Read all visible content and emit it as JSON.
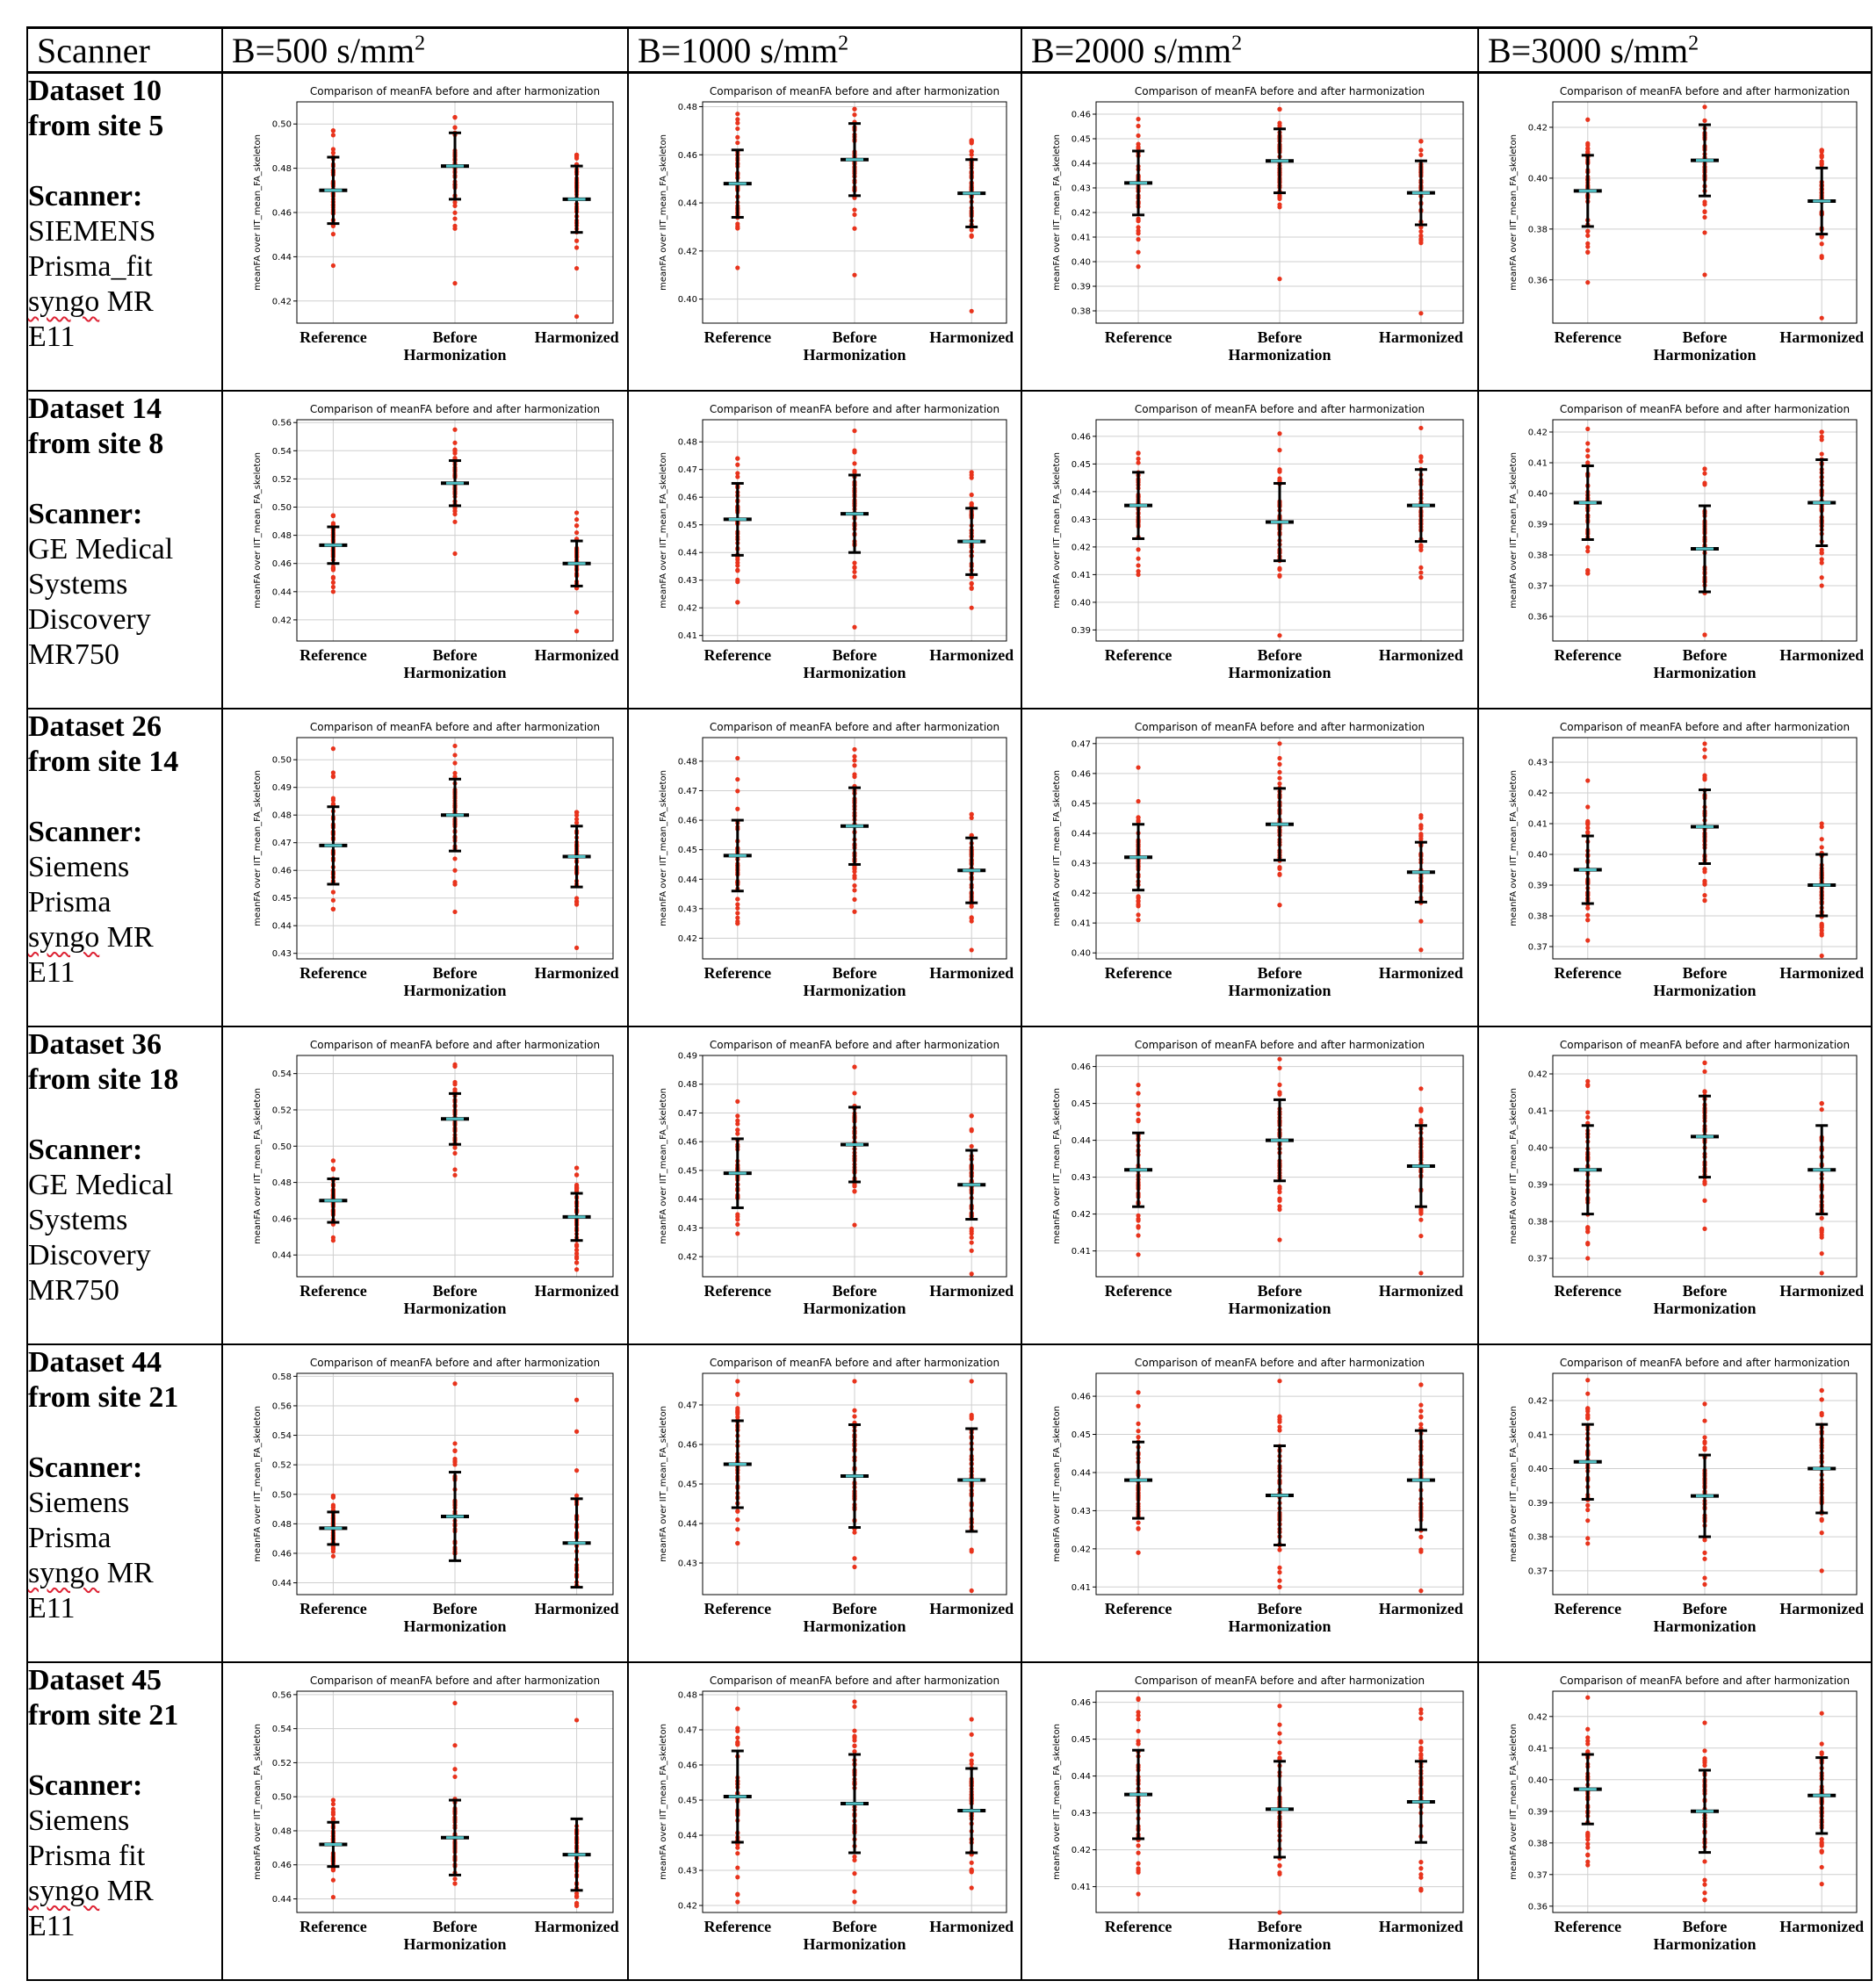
{
  "header": {
    "scanner": "Scanner",
    "b_prefix": "B=",
    "b_unit": " s/mm",
    "b_sup": "2",
    "columns": [
      "500",
      "1000",
      "2000",
      "3000"
    ]
  },
  "plot_text": {
    "title": "Comparison of meanFA before and after harmonization",
    "ylabel": "meanFA over IIT_mean_FA_skeleton",
    "categories": [
      "Reference",
      "Before",
      "Harmonized"
    ],
    "sublabel": "Harmonization"
  },
  "rows": [
    {
      "dataset": "Dataset 10",
      "site": "from site 5",
      "scanner_label": "Scanner:",
      "lines": [
        "SIEMENS",
        "Prisma_fit",
        "syngo MR",
        "E11"
      ],
      "spell": [
        2
      ]
    },
    {
      "dataset": "Dataset 14",
      "site": "from site 8",
      "scanner_label": "Scanner:",
      "lines": [
        "GE Medical",
        "Systems",
        "Discovery",
        "MR750"
      ],
      "spell": []
    },
    {
      "dataset": "Dataset 26",
      "site": "from site 14",
      "scanner_label": "Scanner:",
      "lines": [
        "Siemens",
        "Prisma",
        "syngo MR",
        "E11"
      ],
      "spell": [
        2
      ]
    },
    {
      "dataset": "Dataset 36",
      "site": "from site 18",
      "scanner_label": "Scanner:",
      "lines": [
        "GE Medical",
        "Systems",
        "Discovery",
        "MR750"
      ],
      "spell": []
    },
    {
      "dataset": "Dataset 44",
      "site": "from site 21",
      "scanner_label": "Scanner:",
      "lines": [
        "Siemens",
        "Prisma",
        "syngo MR",
        "E11"
      ],
      "spell": [
        2
      ]
    },
    {
      "dataset": "Dataset 45",
      "site": "from site 21",
      "scanner_label": "Scanner:",
      "lines": [
        "Siemens",
        "Prisma fit",
        "syngo MR",
        "E11"
      ],
      "spell": [
        2
      ]
    }
  ],
  "chart_data": [
    {
      "type": "scatter",
      "row": 0,
      "col": 0,
      "ylim": [
        0.41,
        0.51
      ],
      "yticks": [
        0.42,
        0.44,
        0.46,
        0.48,
        0.5
      ],
      "means": [
        0.47,
        0.481,
        0.466
      ],
      "sds": [
        0.015,
        0.015,
        0.015
      ],
      "mins": [
        0.436,
        0.428,
        0.413
      ],
      "maxs": [
        0.497,
        0.503,
        0.486
      ],
      "seed": 11
    },
    {
      "type": "scatter",
      "row": 0,
      "col": 1,
      "ylim": [
        0.39,
        0.482
      ],
      "yticks": [
        0.4,
        0.42,
        0.44,
        0.46,
        0.48
      ],
      "means": [
        0.448,
        0.458,
        0.444
      ],
      "sds": [
        0.014,
        0.015,
        0.014
      ],
      "mins": [
        0.413,
        0.41,
        0.395
      ],
      "maxs": [
        0.477,
        0.479,
        0.466
      ],
      "seed": 12
    },
    {
      "type": "scatter",
      "row": 0,
      "col": 2,
      "ylim": [
        0.375,
        0.465
      ],
      "yticks": [
        0.38,
        0.39,
        0.4,
        0.41,
        0.42,
        0.43,
        0.44,
        0.45,
        0.46
      ],
      "means": [
        0.432,
        0.441,
        0.428
      ],
      "sds": [
        0.013,
        0.013,
        0.013
      ],
      "mins": [
        0.398,
        0.393,
        0.379
      ],
      "maxs": [
        0.458,
        0.462,
        0.449
      ],
      "seed": 13
    },
    {
      "type": "scatter",
      "row": 0,
      "col": 3,
      "ylim": [
        0.343,
        0.43
      ],
      "yticks": [
        0.36,
        0.38,
        0.4,
        0.42
      ],
      "means": [
        0.395,
        0.407,
        0.391
      ],
      "sds": [
        0.014,
        0.014,
        0.013
      ],
      "mins": [
        0.359,
        0.362,
        0.345
      ],
      "maxs": [
        0.423,
        0.428,
        0.411
      ],
      "seed": 14
    },
    {
      "type": "scatter",
      "row": 1,
      "col": 0,
      "ylim": [
        0.405,
        0.562
      ],
      "yticks": [
        0.42,
        0.44,
        0.46,
        0.48,
        0.5,
        0.52,
        0.54,
        0.56
      ],
      "means": [
        0.473,
        0.517,
        0.46
      ],
      "sds": [
        0.013,
        0.016,
        0.016
      ],
      "mins": [
        0.44,
        0.467,
        0.412
      ],
      "maxs": [
        0.494,
        0.555,
        0.496
      ],
      "seed": 21
    },
    {
      "type": "scatter",
      "row": 1,
      "col": 1,
      "ylim": [
        0.408,
        0.488
      ],
      "yticks": [
        0.41,
        0.42,
        0.43,
        0.44,
        0.45,
        0.46,
        0.47,
        0.48
      ],
      "means": [
        0.452,
        0.454,
        0.444
      ],
      "sds": [
        0.013,
        0.014,
        0.012
      ],
      "mins": [
        0.422,
        0.413,
        0.42
      ],
      "maxs": [
        0.474,
        0.484,
        0.469
      ],
      "seed": 22
    },
    {
      "type": "scatter",
      "row": 1,
      "col": 2,
      "ylim": [
        0.386,
        0.466
      ],
      "yticks": [
        0.39,
        0.4,
        0.41,
        0.42,
        0.43,
        0.44,
        0.45,
        0.46
      ],
      "means": [
        0.435,
        0.429,
        0.435
      ],
      "sds": [
        0.012,
        0.014,
        0.013
      ],
      "mins": [
        0.41,
        0.388,
        0.409
      ],
      "maxs": [
        0.454,
        0.461,
        0.463
      ],
      "seed": 23
    },
    {
      "type": "scatter",
      "row": 1,
      "col": 3,
      "ylim": [
        0.352,
        0.424
      ],
      "yticks": [
        0.36,
        0.37,
        0.38,
        0.39,
        0.4,
        0.41,
        0.42
      ],
      "means": [
        0.397,
        0.382,
        0.397
      ],
      "sds": [
        0.012,
        0.014,
        0.014
      ],
      "mins": [
        0.374,
        0.354,
        0.37
      ],
      "maxs": [
        0.421,
        0.408,
        0.42
      ],
      "seed": 24
    },
    {
      "type": "scatter",
      "row": 2,
      "col": 0,
      "ylim": [
        0.428,
        0.508
      ],
      "yticks": [
        0.43,
        0.44,
        0.45,
        0.46,
        0.47,
        0.48,
        0.49,
        0.5
      ],
      "means": [
        0.469,
        0.48,
        0.465
      ],
      "sds": [
        0.014,
        0.013,
        0.011
      ],
      "mins": [
        0.446,
        0.445,
        0.432
      ],
      "maxs": [
        0.504,
        0.505,
        0.481
      ],
      "seed": 31
    },
    {
      "type": "scatter",
      "row": 2,
      "col": 1,
      "ylim": [
        0.413,
        0.488
      ],
      "yticks": [
        0.42,
        0.43,
        0.44,
        0.45,
        0.46,
        0.47,
        0.48
      ],
      "means": [
        0.448,
        0.458,
        0.443
      ],
      "sds": [
        0.012,
        0.013,
        0.011
      ],
      "mins": [
        0.425,
        0.429,
        0.416
      ],
      "maxs": [
        0.481,
        0.484,
        0.462
      ],
      "seed": 32
    },
    {
      "type": "scatter",
      "row": 2,
      "col": 2,
      "ylim": [
        0.398,
        0.472
      ],
      "yticks": [
        0.4,
        0.41,
        0.42,
        0.43,
        0.44,
        0.45,
        0.46,
        0.47
      ],
      "means": [
        0.432,
        0.443,
        0.427
      ],
      "sds": [
        0.011,
        0.012,
        0.01
      ],
      "mins": [
        0.411,
        0.416,
        0.401
      ],
      "maxs": [
        0.462,
        0.47,
        0.446
      ],
      "seed": 33
    },
    {
      "type": "scatter",
      "row": 2,
      "col": 3,
      "ylim": [
        0.366,
        0.438
      ],
      "yticks": [
        0.37,
        0.38,
        0.39,
        0.4,
        0.41,
        0.42,
        0.43
      ],
      "means": [
        0.395,
        0.409,
        0.39
      ],
      "sds": [
        0.011,
        0.012,
        0.01
      ],
      "mins": [
        0.372,
        0.385,
        0.367
      ],
      "maxs": [
        0.424,
        0.436,
        0.41
      ],
      "seed": 34
    },
    {
      "type": "scatter",
      "row": 3,
      "col": 0,
      "ylim": [
        0.428,
        0.55
      ],
      "yticks": [
        0.44,
        0.46,
        0.48,
        0.5,
        0.52,
        0.54
      ],
      "means": [
        0.47,
        0.515,
        0.461
      ],
      "sds": [
        0.012,
        0.014,
        0.013
      ],
      "mins": [
        0.448,
        0.484,
        0.432
      ],
      "maxs": [
        0.492,
        0.545,
        0.488
      ],
      "seed": 41
    },
    {
      "type": "scatter",
      "row": 3,
      "col": 1,
      "ylim": [
        0.413,
        0.49
      ],
      "yticks": [
        0.42,
        0.43,
        0.44,
        0.45,
        0.46,
        0.47,
        0.48,
        0.49
      ],
      "means": [
        0.449,
        0.459,
        0.445
      ],
      "sds": [
        0.012,
        0.013,
        0.012
      ],
      "mins": [
        0.428,
        0.431,
        0.414
      ],
      "maxs": [
        0.474,
        0.486,
        0.469
      ],
      "seed": 42
    },
    {
      "type": "scatter",
      "row": 3,
      "col": 2,
      "ylim": [
        0.403,
        0.463
      ],
      "yticks": [
        0.41,
        0.42,
        0.43,
        0.44,
        0.45,
        0.46
      ],
      "means": [
        0.432,
        0.44,
        0.433
      ],
      "sds": [
        0.01,
        0.011,
        0.011
      ],
      "mins": [
        0.409,
        0.413,
        0.404
      ],
      "maxs": [
        0.455,
        0.462,
        0.454
      ],
      "seed": 43
    },
    {
      "type": "scatter",
      "row": 3,
      "col": 3,
      "ylim": [
        0.365,
        0.425
      ],
      "yticks": [
        0.37,
        0.38,
        0.39,
        0.4,
        0.41,
        0.42
      ],
      "means": [
        0.394,
        0.403,
        0.394
      ],
      "sds": [
        0.012,
        0.011,
        0.012
      ],
      "mins": [
        0.37,
        0.378,
        0.366
      ],
      "maxs": [
        0.418,
        0.423,
        0.412
      ],
      "seed": 44
    },
    {
      "type": "scatter",
      "row": 4,
      "col": 0,
      "ylim": [
        0.432,
        0.582
      ],
      "yticks": [
        0.44,
        0.46,
        0.48,
        0.5,
        0.52,
        0.54,
        0.56,
        0.58
      ],
      "means": [
        0.477,
        0.485,
        0.467
      ],
      "sds": [
        0.011,
        0.03,
        0.03
      ],
      "mins": [
        0.458,
        0.46,
        0.438
      ],
      "maxs": [
        0.499,
        0.575,
        0.564
      ],
      "seed": 51
    },
    {
      "type": "scatter",
      "row": 4,
      "col": 1,
      "ylim": [
        0.422,
        0.478
      ],
      "yticks": [
        0.43,
        0.44,
        0.45,
        0.46,
        0.47
      ],
      "means": [
        0.455,
        0.452,
        0.451
      ],
      "sds": [
        0.011,
        0.013,
        0.013
      ],
      "mins": [
        0.435,
        0.429,
        0.423
      ],
      "maxs": [
        0.476,
        0.476,
        0.476
      ],
      "seed": 52
    },
    {
      "type": "scatter",
      "row": 4,
      "col": 2,
      "ylim": [
        0.408,
        0.466
      ],
      "yticks": [
        0.41,
        0.42,
        0.43,
        0.44,
        0.45,
        0.46
      ],
      "means": [
        0.438,
        0.434,
        0.438
      ],
      "sds": [
        0.01,
        0.013,
        0.013
      ],
      "mins": [
        0.419,
        0.41,
        0.409
      ],
      "maxs": [
        0.461,
        0.464,
        0.463
      ],
      "seed": 53
    },
    {
      "type": "scatter",
      "row": 4,
      "col": 3,
      "ylim": [
        0.363,
        0.428
      ],
      "yticks": [
        0.37,
        0.38,
        0.39,
        0.4,
        0.41,
        0.42
      ],
      "means": [
        0.402,
        0.392,
        0.4
      ],
      "sds": [
        0.011,
        0.012,
        0.013
      ],
      "mins": [
        0.378,
        0.366,
        0.37
      ],
      "maxs": [
        0.426,
        0.419,
        0.423
      ],
      "seed": 54
    },
    {
      "type": "scatter",
      "row": 5,
      "col": 0,
      "ylim": [
        0.432,
        0.562
      ],
      "yticks": [
        0.44,
        0.46,
        0.48,
        0.5,
        0.52,
        0.54,
        0.56
      ],
      "means": [
        0.472,
        0.476,
        0.466
      ],
      "sds": [
        0.013,
        0.022,
        0.021
      ],
      "mins": [
        0.441,
        0.449,
        0.436
      ],
      "maxs": [
        0.498,
        0.555,
        0.545
      ],
      "seed": 61
    },
    {
      "type": "scatter",
      "row": 5,
      "col": 1,
      "ylim": [
        0.418,
        0.481
      ],
      "yticks": [
        0.42,
        0.43,
        0.44,
        0.45,
        0.46,
        0.47,
        0.48
      ],
      "means": [
        0.451,
        0.449,
        0.447
      ],
      "sds": [
        0.013,
        0.014,
        0.012
      ],
      "mins": [
        0.421,
        0.421,
        0.425
      ],
      "maxs": [
        0.476,
        0.478,
        0.473
      ],
      "seed": 62
    },
    {
      "type": "scatter",
      "row": 5,
      "col": 2,
      "ylim": [
        0.403,
        0.463
      ],
      "yticks": [
        0.41,
        0.42,
        0.43,
        0.44,
        0.45,
        0.46
      ],
      "means": [
        0.435,
        0.431,
        0.433
      ],
      "sds": [
        0.012,
        0.013,
        0.011
      ],
      "mins": [
        0.408,
        0.403,
        0.409
      ],
      "maxs": [
        0.461,
        0.459,
        0.458
      ],
      "seed": 63
    },
    {
      "type": "scatter",
      "row": 5,
      "col": 3,
      "ylim": [
        0.358,
        0.428
      ],
      "yticks": [
        0.36,
        0.37,
        0.38,
        0.39,
        0.4,
        0.41,
        0.42
      ],
      "means": [
        0.397,
        0.39,
        0.395
      ],
      "sds": [
        0.011,
        0.013,
        0.012
      ],
      "mins": [
        0.373,
        0.362,
        0.367
      ],
      "maxs": [
        0.426,
        0.418,
        0.421
      ],
      "seed": 64
    }
  ]
}
